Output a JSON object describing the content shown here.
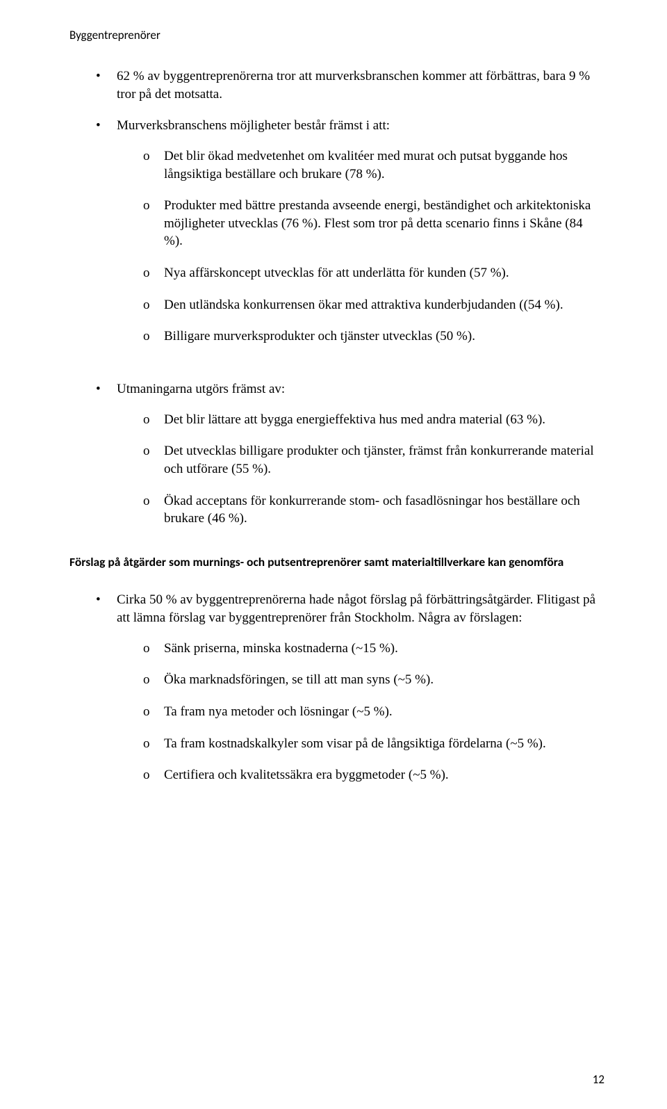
{
  "header": "Byggentreprenörer",
  "colors": {
    "text": "#000000",
    "background": "#ffffff"
  },
  "typography": {
    "body_font": "Times New Roman",
    "alt_font": "Calibri",
    "body_size_pt": 12,
    "header_size_pt": 11,
    "heading_size_pt": 11,
    "heading_weight": "bold"
  },
  "section1": {
    "b1": "62 % av byggentreprenörerna tror att murverksbranschen kommer att förbättras, bara 9 % tror på det motsatta.",
    "b2_intro": "Murverksbranschens möjligheter består främst i att:",
    "b2_sub": [
      "Det blir ökad medvetenhet om kvalitéer med murat och putsat byggande hos långsiktiga beställare och brukare (78 %).",
      "Produkter med bättre prestanda avseende energi, beständighet och arkitektoniska möjligheter utvecklas (76 %). Flest som tror på detta scenario finns i Skåne (84 %).",
      "Nya affärskoncept utvecklas för att underlätta för kunden (57 %).",
      "Den utländska konkurrensen ökar med attraktiva kunderbjudanden ((54 %).",
      "Billigare murverksprodukter och tjänster utvecklas (50 %)."
    ],
    "b3_intro": "Utmaningarna utgörs främst av:",
    "b3_sub": [
      "Det blir lättare att bygga energieffektiva hus med andra material (63 %).",
      "Det utvecklas billigare produkter och tjänster, främst från konkurrerande material och utförare (55 %).",
      "Ökad acceptans för konkurrerande stom- och fasadlösningar hos beställare och brukare (46 %)."
    ]
  },
  "heading2": "Förslag på åtgärder som murnings- och putsentreprenörer samt materialtillverkare kan genomföra",
  "section2": {
    "b1_intro": "Cirka 50 % av byggentreprenörerna hade något förslag på förbättringsåtgärder. Flitigast på att lämna förslag var byggentreprenörer från Stockholm. Några av förslagen:",
    "b1_sub": [
      "Sänk priserna, minska kostnaderna (~15 %).",
      "Öka marknadsföringen, se till att man syns (~5 %).",
      "Ta fram nya metoder och lösningar (~5 %).",
      "Ta fram kostnadskalkyler som visar på de långsiktiga fördelarna (~5 %).",
      "Certifiera och kvalitetssäkra era byggmetoder (~5 %)."
    ]
  },
  "page_number": "12",
  "sub_marker": "o"
}
